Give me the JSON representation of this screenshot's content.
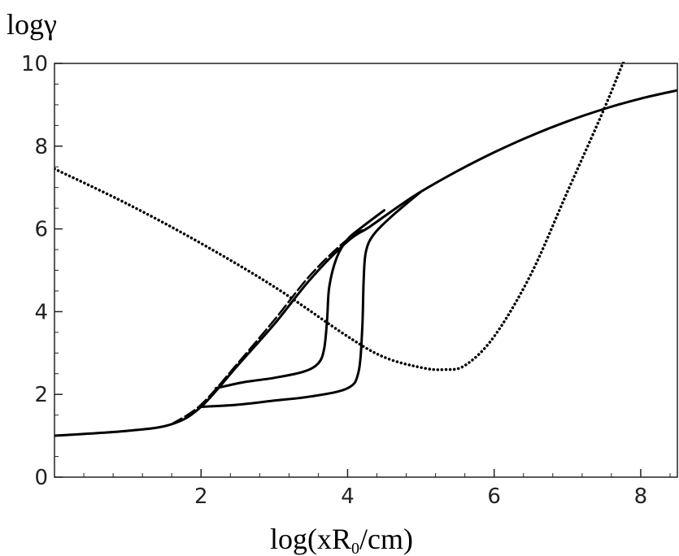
{
  "chart_data": {
    "type": "line",
    "ylabel": "logγ",
    "xlabel": {
      "prefix": "log(xR",
      "subscript": "0",
      "suffix": "/cm)"
    },
    "xlim": [
      0,
      8.5
    ],
    "ylim": [
      0,
      10
    ],
    "xticks": [
      2,
      4,
      6,
      8
    ],
    "yticks": [
      0,
      2,
      4,
      6,
      8,
      10
    ],
    "grid": false,
    "colors": {
      "line": "#000000",
      "axis": "#222222"
    },
    "series": [
      {
        "style": "solid",
        "x": [
          0,
          1.0,
          1.6,
          2.0,
          2.5,
          3.0,
          3.5,
          4.0,
          4.3,
          4.7,
          5.0,
          5.5,
          6.0,
          6.5,
          7.0,
          7.5,
          8.0,
          8.5
        ],
        "y": [
          1.0,
          1.12,
          1.28,
          1.7,
          2.7,
          3.7,
          4.8,
          5.7,
          6.05,
          6.55,
          6.9,
          7.4,
          7.85,
          8.25,
          8.6,
          8.9,
          9.15,
          9.35
        ]
      },
      {
        "style": "dashed",
        "x": [
          1.6,
          2.0,
          2.5,
          3.0,
          3.5,
          4.0,
          4.3
        ],
        "y": [
          1.28,
          1.75,
          2.75,
          3.8,
          4.9,
          5.75,
          6.05
        ]
      },
      {
        "style": "solid",
        "x": [
          2.2,
          2.6,
          3.0,
          3.4,
          3.6,
          3.68,
          3.72,
          3.75,
          3.85,
          4.0,
          4.2,
          4.5
        ],
        "y": [
          2.15,
          2.3,
          2.4,
          2.55,
          2.75,
          3.1,
          3.8,
          4.6,
          5.3,
          5.75,
          6.05,
          6.45
        ]
      },
      {
        "style": "solid",
        "x": [
          2.0,
          2.5,
          3.0,
          3.5,
          4.0,
          4.15,
          4.2,
          4.22,
          4.25,
          4.35,
          4.6,
          5.0
        ],
        "y": [
          1.7,
          1.75,
          1.85,
          1.95,
          2.15,
          2.55,
          3.6,
          4.8,
          5.45,
          5.85,
          6.3,
          6.9
        ]
      },
      {
        "style": "dotted",
        "x": [
          0,
          1.0,
          2.0,
          3.0,
          4.0,
          4.5,
          5.0,
          5.3,
          5.6,
          6.0,
          6.5,
          7.0,
          7.5,
          7.8
        ],
        "y": [
          7.45,
          6.6,
          5.65,
          4.6,
          3.4,
          2.9,
          2.65,
          2.6,
          2.7,
          3.4,
          4.9,
          6.9,
          8.9,
          10.2
        ]
      }
    ]
  }
}
